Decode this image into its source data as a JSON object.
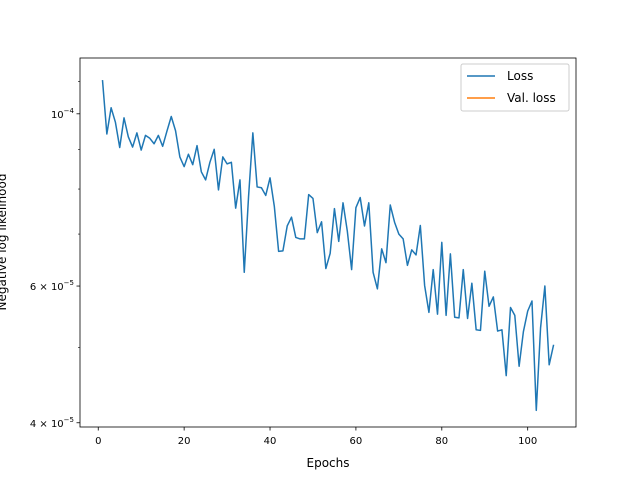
{
  "chart_data": {
    "type": "line",
    "title": "",
    "xlabel": "Epochs",
    "ylabel": "Negative log likelihood",
    "xscale": "linear",
    "yscale": "log",
    "xlim": [
      -4.25,
      111.25
    ],
    "ylim": [
      3.95e-05,
      0.000118
    ],
    "xticks": [
      0,
      20,
      40,
      60,
      80,
      100
    ],
    "xtick_labels": [
      "0",
      "20",
      "40",
      "60",
      "80",
      "100"
    ],
    "yticks": [
      0.0001,
      6e-05,
      4e-05
    ],
    "ytick_labels": [
      {
        "mant": "10",
        "exp": "−4"
      },
      {
        "mant": "6 × 10",
        "exp": "−5"
      },
      {
        "mant": "4 × 10",
        "exp": "−5"
      }
    ],
    "grid": false,
    "legend_position": "top-right",
    "series": [
      {
        "name": "Loss",
        "color": "#1f77b4",
        "x": [
          1,
          2,
          3,
          4,
          5,
          6,
          7,
          8,
          9,
          10,
          11,
          12,
          13,
          14,
          15,
          16,
          17,
          18,
          19,
          20,
          21,
          22,
          23,
          24,
          25,
          26,
          27,
          28,
          29,
          30,
          31,
          32,
          33,
          34,
          35,
          36,
          37,
          38,
          39,
          40,
          41,
          42,
          43,
          44,
          45,
          46,
          47,
          48,
          49,
          50,
          51,
          52,
          53,
          54,
          55,
          56,
          57,
          58,
          59,
          60,
          61,
          62,
          63,
          64,
          65,
          66,
          67,
          68,
          69,
          70,
          71,
          72,
          73,
          74,
          75,
          76,
          77,
          78,
          79,
          80,
          81,
          82,
          83,
          84,
          85,
          86,
          87,
          88,
          89,
          90,
          91,
          92,
          93,
          94,
          95,
          96,
          97,
          98,
          99,
          100,
          101,
          102,
          103,
          104,
          105,
          106
        ],
        "y": [
          0.0001103,
          9.42e-05,
          0.0001018,
          9.75e-05,
          9.05e-05,
          9.88e-05,
          9.34e-05,
          9.06e-05,
          9.45e-05,
          8.98e-05,
          9.38e-05,
          9.3e-05,
          9.15e-05,
          9.38e-05,
          9.08e-05,
          9.5e-05,
          9.92e-05,
          9.51e-05,
          8.8e-05,
          8.55e-05,
          8.87e-05,
          8.6e-05,
          9.1e-05,
          8.42e-05,
          8.22e-05,
          8.66e-05,
          9e-05,
          7.98e-05,
          8.8e-05,
          8.62e-05,
          8.66e-05,
          7.56e-05,
          8.22e-05,
          6.25e-05,
          7.82e-05,
          9.45e-05,
          8.05e-05,
          8.03e-05,
          7.85e-05,
          8.27e-05,
          7.6e-05,
          6.65e-05,
          6.66e-05,
          7.17e-05,
          7.36e-05,
          6.93e-05,
          6.9e-05,
          6.9e-05,
          7.87e-05,
          7.78e-05,
          7.03e-05,
          7.26e-05,
          6.32e-05,
          6.61e-05,
          7.55e-05,
          6.85e-05,
          7.68e-05,
          7.06e-05,
          6.3e-05,
          7.57e-05,
          7.8e-05,
          7.17e-05,
          7.68e-05,
          6.25e-05,
          5.95e-05,
          6.7e-05,
          6.43e-05,
          7.63e-05,
          7.25e-05,
          7e-05,
          6.9e-05,
          6.38e-05,
          6.68e-05,
          6.58e-05,
          7.18e-05,
          6.01e-05,
          5.55e-05,
          6.3e-05,
          5.52e-05,
          6.83e-05,
          5.5e-05,
          6.6e-05,
          5.47e-05,
          5.46e-05,
          6.3e-05,
          5.45e-05,
          6.05e-05,
          5.27e-05,
          5.26e-05,
          6.27e-05,
          5.65e-05,
          5.81e-05,
          5.25e-05,
          5.27e-05,
          4.6e-05,
          5.63e-05,
          5.5e-05,
          4.73e-05,
          5.24e-05,
          5.57e-05,
          5.74e-05,
          4.15e-05,
          5.3e-05,
          6e-05,
          4.75e-05,
          5.03e-05
        ]
      },
      {
        "name": "Val. loss",
        "color": "#ff7f0e",
        "x": [],
        "y": []
      }
    ]
  }
}
